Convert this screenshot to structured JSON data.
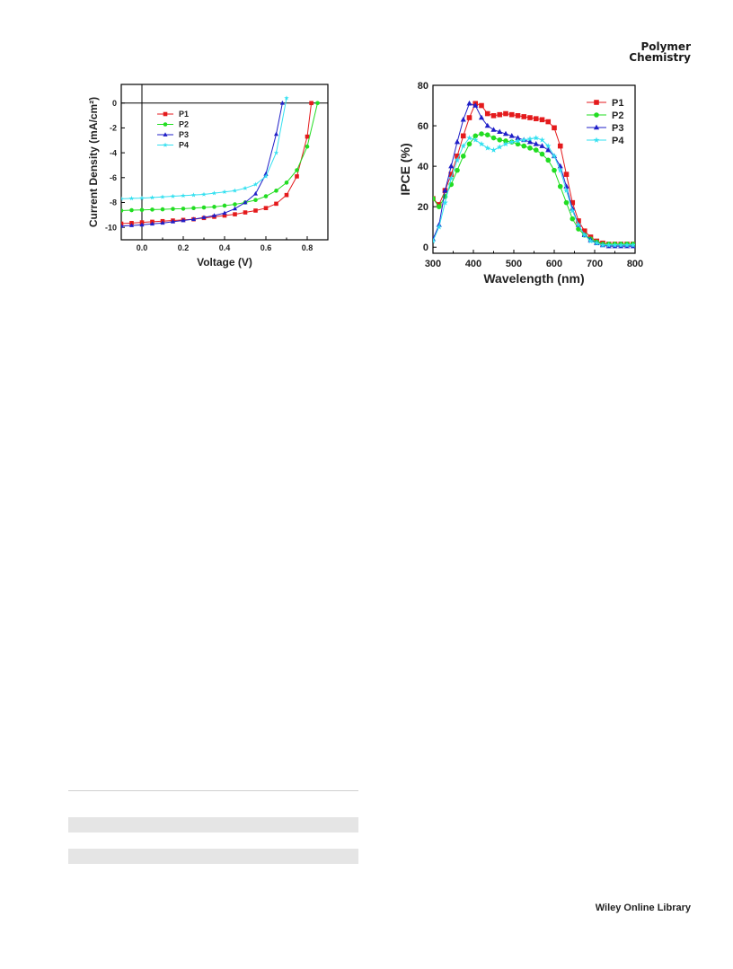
{
  "header": {
    "journal_line1": "Polymer",
    "journal_line2": "Chemistry"
  },
  "footer": {
    "label": "Wiley Online Library"
  },
  "chart_data": [
    {
      "type": "line",
      "title": "",
      "xlabel": "Voltage (V)",
      "ylabel": "Current Density (mA/cm²)",
      "xlim": [
        -0.1,
        0.9
      ],
      "ylim": [
        -11,
        1.5
      ],
      "xticks": [
        0.0,
        0.2,
        0.4,
        0.6,
        0.8
      ],
      "xtick_labels": [
        "0.0",
        "0.2",
        "0.4",
        "0.6",
        "0.8"
      ],
      "yticks": [
        0,
        -2,
        -4,
        -6,
        -8,
        -10
      ],
      "ytick_labels": [
        "0",
        "-2",
        "-4",
        "-6",
        "-8",
        "-10"
      ],
      "grid": false,
      "legend": "top-left",
      "series": [
        {
          "name": "P1",
          "color": "#e41a1c",
          "marker": "square",
          "x": [
            -0.1,
            -0.05,
            0.0,
            0.05,
            0.1,
            0.15,
            0.2,
            0.25,
            0.3,
            0.35,
            0.4,
            0.45,
            0.5,
            0.55,
            0.6,
            0.65,
            0.7,
            0.75,
            0.8,
            0.82
          ],
          "y": [
            -9.7,
            -9.65,
            -9.6,
            -9.55,
            -9.5,
            -9.45,
            -9.4,
            -9.35,
            -9.25,
            -9.15,
            -9.05,
            -8.95,
            -8.8,
            -8.65,
            -8.45,
            -8.1,
            -7.4,
            -5.9,
            -2.7,
            0.0
          ]
        },
        {
          "name": "P2",
          "color": "#22dd22",
          "marker": "circle",
          "x": [
            -0.1,
            -0.05,
            0.0,
            0.05,
            0.1,
            0.15,
            0.2,
            0.25,
            0.3,
            0.35,
            0.4,
            0.45,
            0.5,
            0.55,
            0.6,
            0.65,
            0.7,
            0.75,
            0.8,
            0.85
          ],
          "y": [
            -8.65,
            -8.62,
            -8.6,
            -8.57,
            -8.55,
            -8.52,
            -8.5,
            -8.45,
            -8.4,
            -8.35,
            -8.25,
            -8.15,
            -8.0,
            -7.8,
            -7.5,
            -7.05,
            -6.4,
            -5.4,
            -3.5,
            0.0
          ]
        },
        {
          "name": "P3",
          "color": "#1f1fc8",
          "marker": "triangle",
          "x": [
            -0.1,
            -0.05,
            0.0,
            0.05,
            0.1,
            0.15,
            0.2,
            0.25,
            0.3,
            0.35,
            0.4,
            0.45,
            0.5,
            0.55,
            0.6,
            0.65,
            0.68
          ],
          "y": [
            -9.9,
            -9.85,
            -9.8,
            -9.72,
            -9.65,
            -9.55,
            -9.45,
            -9.35,
            -9.2,
            -9.05,
            -8.85,
            -8.5,
            -8.0,
            -7.3,
            -5.7,
            -2.5,
            0.0
          ]
        },
        {
          "name": "P4",
          "color": "#33e0f0",
          "marker": "star",
          "x": [
            -0.1,
            -0.05,
            0.0,
            0.05,
            0.1,
            0.15,
            0.2,
            0.25,
            0.3,
            0.35,
            0.4,
            0.45,
            0.5,
            0.55,
            0.6,
            0.65,
            0.7
          ],
          "y": [
            -7.7,
            -7.67,
            -7.65,
            -7.6,
            -7.55,
            -7.5,
            -7.45,
            -7.4,
            -7.35,
            -7.25,
            -7.15,
            -7.05,
            -6.85,
            -6.55,
            -5.9,
            -4.0,
            0.4
          ]
        }
      ]
    },
    {
      "type": "line",
      "title": "",
      "xlabel": "Wavelength (nm)",
      "ylabel": "IPCE (%)",
      "xlim": [
        300,
        800
      ],
      "ylim": [
        -3,
        80
      ],
      "xticks": [
        300,
        400,
        500,
        600,
        700,
        800
      ],
      "xtick_labels": [
        "300",
        "400",
        "500",
        "600",
        "700",
        "800"
      ],
      "yticks": [
        0,
        20,
        40,
        60,
        80
      ],
      "ytick_labels": [
        "0",
        "20",
        "40",
        "60",
        "80"
      ],
      "grid": false,
      "legend": "top-right",
      "series": [
        {
          "name": "P1",
          "color": "#e41a1c",
          "marker": "square",
          "x": [
            300,
            315,
            330,
            345,
            360,
            375,
            390,
            405,
            420,
            435,
            450,
            465,
            480,
            495,
            510,
            525,
            540,
            555,
            570,
            585,
            600,
            615,
            630,
            645,
            660,
            675,
            690,
            705,
            720,
            735,
            750,
            765,
            780,
            795
          ],
          "y": [
            24,
            21,
            28,
            36,
            45,
            55,
            64,
            71,
            70,
            66,
            65,
            65.5,
            66,
            65.5,
            65,
            64.5,
            64,
            63.5,
            63,
            62,
            59,
            50,
            36,
            22,
            13,
            8,
            5,
            3,
            2,
            1.5,
            1.5,
            1.5,
            1.5,
            1.5
          ]
        },
        {
          "name": "P2",
          "color": "#22dd22",
          "marker": "circle",
          "x": [
            300,
            315,
            330,
            345,
            360,
            375,
            390,
            405,
            420,
            435,
            450,
            465,
            480,
            495,
            510,
            525,
            540,
            555,
            570,
            585,
            600,
            615,
            630,
            645,
            660,
            675,
            690,
            705,
            720,
            735,
            750,
            765,
            780,
            795
          ],
          "y": [
            24,
            20,
            25,
            31,
            38,
            45,
            51,
            55,
            56,
            55.5,
            54,
            53,
            52.5,
            52,
            51,
            50,
            49,
            48,
            46,
            43,
            38,
            30,
            22,
            14,
            9,
            6,
            4,
            2.5,
            1.5,
            1.5,
            1.5,
            1.5,
            1.5,
            1.5
          ]
        },
        {
          "name": "P3",
          "color": "#1f1fc8",
          "marker": "triangle",
          "x": [
            300,
            315,
            330,
            345,
            360,
            375,
            390,
            405,
            420,
            435,
            450,
            465,
            480,
            495,
            510,
            525,
            540,
            555,
            570,
            585,
            600,
            615,
            630,
            645,
            660,
            675,
            690,
            705,
            720,
            735,
            750,
            765,
            780,
            795
          ],
          "y": [
            4,
            11,
            28,
            40,
            52,
            63,
            71,
            70,
            64,
            60,
            58,
            57,
            56,
            55,
            54,
            53,
            52,
            51,
            50,
            48,
            45,
            40,
            30,
            19,
            11,
            6,
            3.5,
            2,
            1,
            0.5,
            0.5,
            0.5,
            0.5,
            0.5
          ]
        },
        {
          "name": "P4",
          "color": "#33e0f0",
          "marker": "star",
          "x": [
            300,
            315,
            330,
            345,
            360,
            375,
            390,
            405,
            420,
            435,
            450,
            465,
            480,
            495,
            510,
            525,
            540,
            555,
            570,
            585,
            600,
            615,
            630,
            645,
            660,
            675,
            690,
            705,
            720,
            735,
            750,
            765,
            780,
            795
          ],
          "y": [
            3,
            10,
            22,
            34,
            43,
            50,
            54,
            53,
            51,
            49,
            48,
            49.5,
            51,
            52,
            52.5,
            53,
            53.5,
            54,
            53,
            50,
            45,
            38,
            28,
            18,
            11,
            6,
            3,
            2,
            1,
            1,
            1,
            1,
            1,
            1
          ]
        }
      ]
    }
  ]
}
